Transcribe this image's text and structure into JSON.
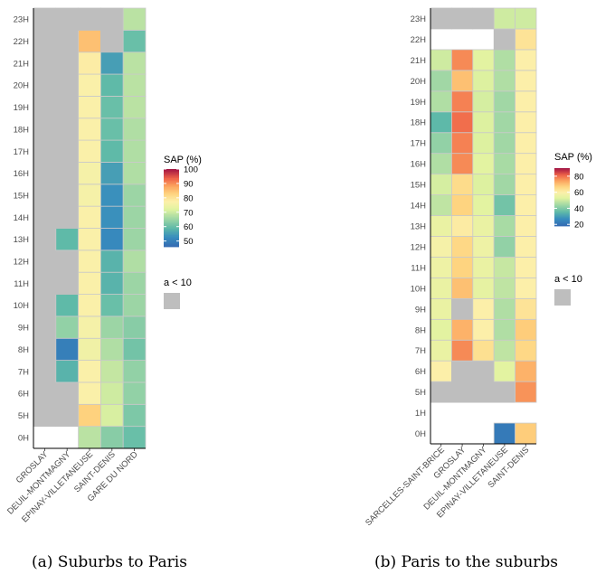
{
  "chart_data": [
    {
      "type": "heatmap",
      "caption": "(a) Suburbs to Paris",
      "categories": [
        "GROSLAY",
        "DEUIL-MONTMAGNY",
        "EPINAY-VILLETANEUSE",
        "SAINT-DENIS",
        "GARE DU NORD"
      ],
      "rows": [
        "0H",
        "5H",
        "6H",
        "7H",
        "8H",
        "9H",
        "10H",
        "11H",
        "12H",
        "13H",
        "14H",
        "15H",
        "16H",
        "17H",
        "18H",
        "19H",
        "20H",
        "21H",
        "22H",
        "23H"
      ],
      "values": [
        [
          null,
          null,
          68,
          63,
          60
        ],
        [
          "na",
          "na",
          83,
          71,
          62
        ],
        [
          "na",
          "na",
          77,
          70,
          64
        ],
        [
          "na",
          58,
          77,
          69,
          64
        ],
        [
          "na",
          50,
          75,
          67,
          61
        ],
        [
          "na",
          64,
          76,
          65,
          63
        ],
        [
          "na",
          59,
          77,
          60,
          65
        ],
        [
          "na",
          "na",
          77,
          58,
          65
        ],
        [
          "na",
          "na",
          77,
          58,
          67
        ],
        [
          "na",
          59,
          77,
          52,
          65
        ],
        [
          "na",
          "na",
          77,
          53,
          65
        ],
        [
          "na",
          "na",
          76,
          53,
          65
        ],
        [
          "na",
          "na",
          76,
          55,
          67
        ],
        [
          "na",
          "na",
          77,
          59,
          67
        ],
        [
          "na",
          "na",
          77,
          60,
          67
        ],
        [
          "na",
          "na",
          77,
          60,
          68
        ],
        [
          "na",
          "na",
          77,
          59,
          68
        ],
        [
          "na",
          "na",
          78,
          55,
          68
        ],
        [
          "na",
          "na",
          85,
          "na",
          60
        ],
        [
          "na",
          "na",
          "na",
          "na",
          68
        ]
      ],
      "legend": {
        "title": "SAP (%)",
        "ticks": [
          100,
          90,
          80,
          70,
          60,
          50
        ],
        "min": 46,
        "max": 100,
        "na_label": "a < 10"
      }
    },
    {
      "type": "heatmap",
      "caption": "(b) Paris to the suburbs",
      "categories": [
        "SARCELLES-SAINT-BRICE",
        "GROSLAY",
        "DEUIL-MONTMAGNY",
        "EPINAY-VILLETANEUSE",
        "SAINT-DENIS"
      ],
      "rows": [
        "0H",
        "1H",
        "5H",
        "6H",
        "7H",
        "8H",
        "9H",
        "10H",
        "11H",
        "12H",
        "13H",
        "14H",
        "15H",
        "16H",
        "17H",
        "18H",
        "19H",
        "20H",
        "21H",
        "22H",
        "23H"
      ],
      "values": [
        [
          null,
          null,
          null,
          22,
          68
        ],
        [
          null,
          null,
          null,
          null,
          null
        ],
        [
          "na",
          "na",
          "na",
          "na",
          76
        ],
        [
          60,
          "na",
          "na",
          53,
          72
        ],
        [
          55,
          77,
          64,
          48,
          66
        ],
        [
          53,
          72,
          60,
          46,
          68
        ],
        [
          55,
          "na",
          60,
          46,
          63
        ],
        [
          55,
          70,
          54,
          48,
          60
        ],
        [
          56,
          67,
          55,
          49,
          60
        ],
        [
          58,
          66,
          56,
          42,
          60
        ],
        [
          55,
          61,
          55,
          45,
          60
        ],
        [
          48,
          67,
          53,
          38,
          60
        ],
        [
          51,
          65,
          52,
          44,
          60
        ],
        [
          46,
          77,
          53,
          45,
          60
        ],
        [
          42,
          78,
          52,
          44,
          60
        ],
        [
          35,
          80,
          52,
          44,
          60
        ],
        [
          46,
          78,
          51,
          44,
          60
        ],
        [
          44,
          70,
          52,
          46,
          60
        ],
        [
          50,
          77,
          53,
          46,
          60
        ],
        [
          null,
          null,
          null,
          "na",
          63
        ],
        [
          "na",
          "na",
          "na",
          50,
          50
        ]
      ],
      "legend": {
        "title": "SAP (%)",
        "ticks": [
          80,
          60,
          40,
          20
        ],
        "min": 18,
        "max": 90,
        "na_label": "a < 10"
      }
    }
  ]
}
